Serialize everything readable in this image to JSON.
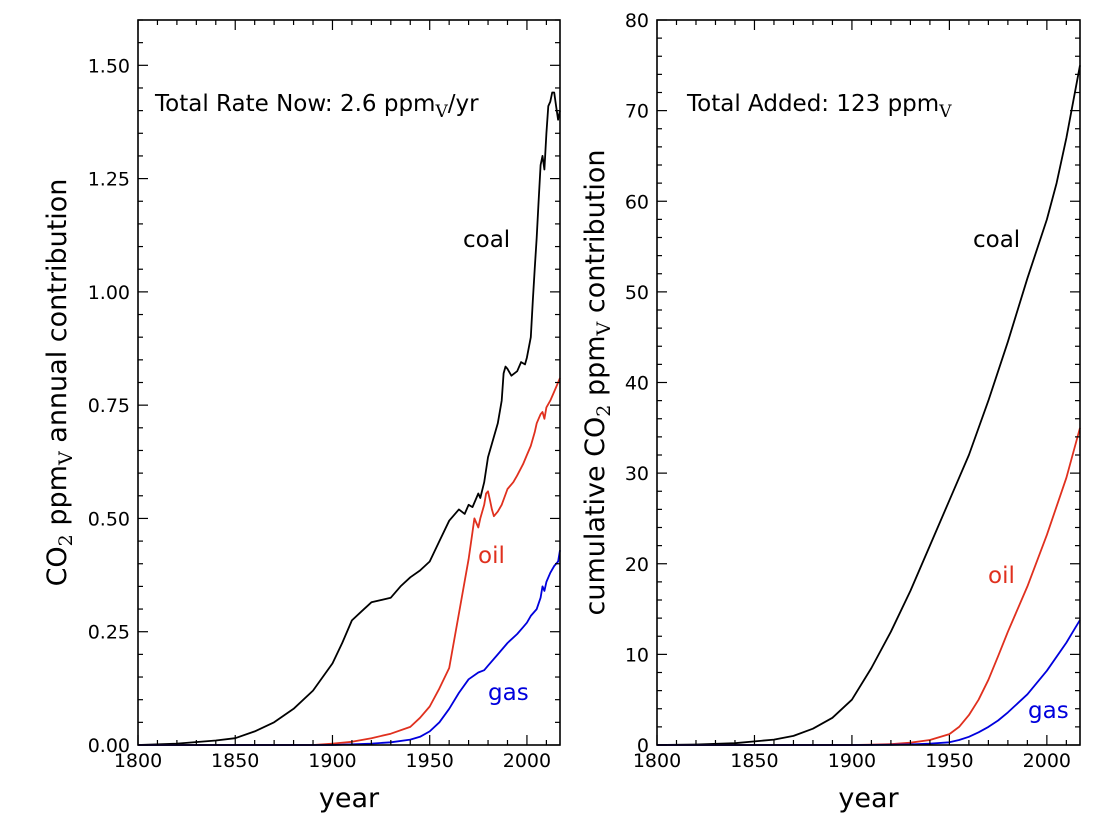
{
  "chart_data": [
    {
      "type": "line",
      "panel": "left",
      "annotation": "Total Rate Now: 2.6 ppm",
      "annotation_sub": "V",
      "annotation_suffix": "/yr",
      "xlabel": "year",
      "ylabel_prefix": "CO",
      "ylabel_sub1": "2",
      "ylabel_mid": " ppm",
      "ylabel_sub2": "V",
      "ylabel_suffix": " annual contribution",
      "xlim": [
        1800,
        2017
      ],
      "ylim": [
        0,
        1.6
      ],
      "xticks": [
        1800,
        1850,
        1900,
        1950,
        2000
      ],
      "yticks": [
        0.0,
        0.25,
        0.5,
        0.75,
        1.0,
        1.25,
        1.5
      ],
      "ytick_labels": [
        "0.00",
        "0.25",
        "0.50",
        "0.75",
        "1.00",
        "1.25",
        "1.50"
      ],
      "series": [
        {
          "name": "coal",
          "color": "#000000",
          "x": [
            1800,
            1820,
            1840,
            1850,
            1860,
            1870,
            1880,
            1890,
            1900,
            1905,
            1910,
            1915,
            1920,
            1930,
            1935,
            1940,
            1945,
            1950,
            1955,
            1960,
            1965,
            1968,
            1970,
            1972,
            1975,
            1976,
            1978,
            1980,
            1982,
            1985,
            1987,
            1988,
            1989,
            1990,
            1992,
            1995,
            1997,
            1999,
            2000,
            2002,
            2003,
            2004,
            2005,
            2006,
            2007,
            2008,
            2009,
            2010,
            2011,
            2012,
            2013,
            2014,
            2015,
            2016,
            2017
          ],
          "y": [
            0.0,
            0.003,
            0.01,
            0.015,
            0.03,
            0.05,
            0.08,
            0.12,
            0.18,
            0.225,
            0.275,
            0.295,
            0.315,
            0.325,
            0.35,
            0.37,
            0.385,
            0.405,
            0.45,
            0.495,
            0.52,
            0.51,
            0.53,
            0.525,
            0.555,
            0.545,
            0.58,
            0.635,
            0.665,
            0.71,
            0.76,
            0.82,
            0.835,
            0.83,
            0.815,
            0.825,
            0.845,
            0.84,
            0.855,
            0.9,
            0.98,
            1.05,
            1.12,
            1.2,
            1.28,
            1.3,
            1.27,
            1.35,
            1.41,
            1.42,
            1.44,
            1.44,
            1.41,
            1.38,
            1.4
          ]
        },
        {
          "name": "oil",
          "color": "#e0301e",
          "x": [
            1800,
            1890,
            1900,
            1910,
            1920,
            1930,
            1940,
            1945,
            1950,
            1955,
            1960,
            1965,
            1970,
            1972,
            1973,
            1975,
            1976,
            1978,
            1979,
            1980,
            1981,
            1982,
            1983,
            1985,
            1987,
            1990,
            1993,
            1995,
            1998,
            2000,
            2002,
            2004,
            2005,
            2006,
            2007,
            2008,
            2009,
            2010,
            2012,
            2014,
            2017
          ],
          "y": [
            0.0,
            0.0,
            0.003,
            0.007,
            0.015,
            0.025,
            0.04,
            0.06,
            0.085,
            0.125,
            0.17,
            0.29,
            0.41,
            0.47,
            0.5,
            0.48,
            0.5,
            0.53,
            0.555,
            0.56,
            0.54,
            0.52,
            0.505,
            0.515,
            0.53,
            0.565,
            0.58,
            0.595,
            0.62,
            0.64,
            0.66,
            0.69,
            0.71,
            0.72,
            0.73,
            0.735,
            0.72,
            0.745,
            0.76,
            0.78,
            0.81
          ]
        },
        {
          "name": "gas",
          "color": "#0000dd",
          "x": [
            1800,
            1900,
            1920,
            1930,
            1940,
            1945,
            1950,
            1955,
            1960,
            1965,
            1970,
            1975,
            1978,
            1980,
            1985,
            1990,
            1995,
            1998,
            2000,
            2002,
            2005,
            2007,
            2008,
            2009,
            2010,
            2012,
            2014,
            2016,
            2017
          ],
          "y": [
            0.0,
            0.0,
            0.003,
            0.006,
            0.012,
            0.018,
            0.03,
            0.05,
            0.08,
            0.115,
            0.145,
            0.16,
            0.165,
            0.175,
            0.2,
            0.225,
            0.245,
            0.26,
            0.27,
            0.285,
            0.3,
            0.325,
            0.35,
            0.34,
            0.36,
            0.38,
            0.395,
            0.405,
            0.43
          ]
        }
      ]
    },
    {
      "type": "line",
      "panel": "right",
      "annotation": "Total Added: 123 ppm",
      "annotation_sub": "V",
      "annotation_suffix": "",
      "xlabel": "year",
      "ylabel_prefix": "cumulative CO",
      "ylabel_sub1": "2",
      "ylabel_mid": " ppm",
      "ylabel_sub2": "V",
      "ylabel_suffix": " contribution",
      "xlim": [
        1800,
        2017
      ],
      "ylim": [
        0,
        80
      ],
      "xticks": [
        1800,
        1850,
        1900,
        1950,
        2000
      ],
      "yticks": [
        0,
        10,
        20,
        30,
        40,
        50,
        60,
        70,
        80
      ],
      "ytick_labels": [
        "0",
        "10",
        "20",
        "30",
        "40",
        "50",
        "60",
        "70",
        "80"
      ],
      "series": [
        {
          "name": "coal",
          "color": "#000000",
          "x": [
            1800,
            1820,
            1840,
            1850,
            1860,
            1870,
            1880,
            1890,
            1900,
            1910,
            1920,
            1930,
            1940,
            1950,
            1960,
            1970,
            1980,
            1990,
            2000,
            2005,
            2010,
            2017
          ],
          "y": [
            0.0,
            0.05,
            0.2,
            0.4,
            0.6,
            1.0,
            1.8,
            3.0,
            5.0,
            8.5,
            12.5,
            17.0,
            22.0,
            27.0,
            32.0,
            38.0,
            44.5,
            51.5,
            58.0,
            62.0,
            67.0,
            75.0
          ]
        },
        {
          "name": "oil",
          "color": "#e0301e",
          "x": [
            1800,
            1900,
            1910,
            1920,
            1930,
            1940,
            1950,
            1955,
            1960,
            1965,
            1970,
            1975,
            1980,
            1990,
            2000,
            2010,
            2017
          ],
          "y": [
            0.0,
            0.0,
            0.03,
            0.1,
            0.25,
            0.55,
            1.2,
            2.0,
            3.3,
            5.0,
            7.2,
            9.8,
            12.5,
            17.5,
            23.2,
            29.5,
            35.0
          ]
        },
        {
          "name": "gas",
          "color": "#0000dd",
          "x": [
            1800,
            1900,
            1920,
            1930,
            1940,
            1950,
            1955,
            1960,
            1965,
            1970,
            1975,
            1980,
            1990,
            2000,
            2010,
            2017
          ],
          "y": [
            0.0,
            0.0,
            0.02,
            0.07,
            0.15,
            0.3,
            0.55,
            0.9,
            1.4,
            2.0,
            2.7,
            3.6,
            5.6,
            8.2,
            11.3,
            13.8
          ]
        }
      ]
    }
  ]
}
